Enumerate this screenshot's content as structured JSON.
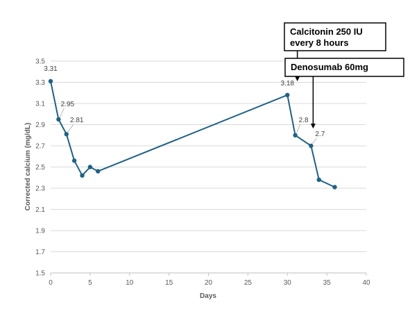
{
  "chart_data": {
    "type": "line",
    "xlabel": "Days",
    "ylabel": "Corrected calcium (mg/dL)",
    "xlim": [
      0,
      40
    ],
    "ylim": [
      1.5,
      3.5
    ],
    "x_ticks": [
      "0",
      "5",
      "10",
      "15",
      "20",
      "25",
      "30",
      "35",
      "40"
    ],
    "y_ticks": [
      "1.5",
      "1.7",
      "1.9",
      "2.1",
      "2.3",
      "2.5",
      "2.7",
      "2.9",
      "3.1",
      "3.3",
      "3.5"
    ],
    "grid": true,
    "series": [
      {
        "x": [
          0,
          1,
          2,
          3,
          4,
          5,
          6,
          30,
          31,
          33,
          34,
          36
        ],
        "y": [
          3.31,
          2.95,
          2.81,
          2.56,
          2.42,
          2.5,
          2.46,
          3.18,
          2.8,
          2.7,
          2.38,
          2.31
        ]
      }
    ],
    "data_labels": [
      {
        "x": 0,
        "y": 3.31,
        "text": "3.31"
      },
      {
        "x": 1,
        "y": 2.95,
        "text": "2.95"
      },
      {
        "x": 2,
        "y": 2.81,
        "text": "2.81"
      },
      {
        "x": 30,
        "y": 3.18,
        "text": "3.18"
      },
      {
        "x": 31,
        "y": 2.8,
        "text": "2.8"
      },
      {
        "x": 33,
        "y": 2.7,
        "text": "2.7"
      }
    ],
    "annotations": [
      {
        "lines": [
          "Calcitonin 250 IU",
          "every 8 hours"
        ],
        "x": 31
      },
      {
        "lines": [
          "Denosumab 60mg"
        ],
        "x": 33
      }
    ],
    "colors": {
      "line": "#1f6283",
      "grid": "#d9d9d9",
      "axis": "#bfbfbf"
    }
  }
}
